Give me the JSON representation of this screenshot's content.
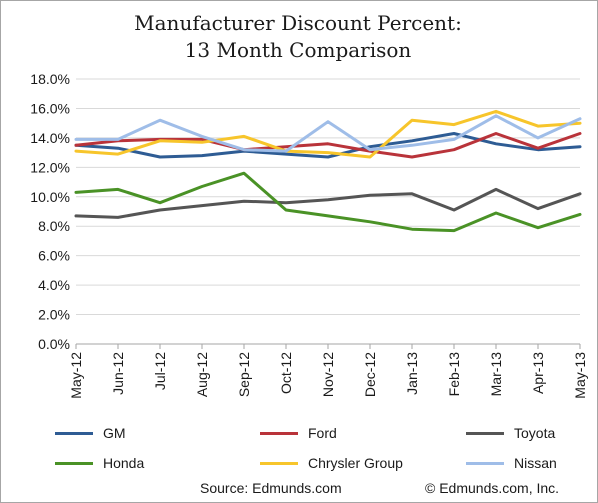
{
  "chart_data": {
    "type": "line",
    "title_lines": [
      "Manufacturer Discount Percent:",
      "13 Month Comparison"
    ],
    "categories": [
      "May-12",
      "Jun-12",
      "Jul-12",
      "Aug-12",
      "Sep-12",
      "Oct-12",
      "Nov-12",
      "Dec-12",
      "Jan-13",
      "Feb-13",
      "Mar-13",
      "Apr-13",
      "May-13"
    ],
    "ylim": [
      0,
      18
    ],
    "y_ticks": [
      "0.0%",
      "2.0%",
      "4.0%",
      "6.0%",
      "8.0%",
      "10.0%",
      "12.0%",
      "14.0%",
      "16.0%",
      "18.0%"
    ],
    "grid": true,
    "legend_position": "bottom",
    "series": [
      {
        "name": "GM",
        "color": "#2e5c94",
        "values": [
          13.5,
          13.3,
          12.7,
          12.8,
          13.1,
          12.9,
          12.7,
          13.4,
          13.8,
          14.3,
          13.6,
          13.2,
          13.4
        ]
      },
      {
        "name": "Ford",
        "color": "#b9333a",
        "values": [
          13.5,
          13.8,
          13.9,
          13.9,
          13.2,
          13.4,
          13.6,
          13.1,
          12.7,
          13.2,
          14.3,
          13.3,
          14.3
        ]
      },
      {
        "name": "Toyota",
        "color": "#555555",
        "values": [
          8.7,
          8.6,
          9.1,
          9.4,
          9.7,
          9.6,
          9.8,
          10.1,
          10.2,
          9.1,
          10.5,
          9.2,
          10.2
        ]
      },
      {
        "name": "Honda",
        "color": "#4a9226",
        "values": [
          10.3,
          10.5,
          9.6,
          10.7,
          11.6,
          9.1,
          8.7,
          8.3,
          7.8,
          7.7,
          8.9,
          7.9,
          8.8
        ]
      },
      {
        "name": "Chrysler Group",
        "color": "#f7c52b",
        "values": [
          13.1,
          12.9,
          13.8,
          13.7,
          14.1,
          13.1,
          13.0,
          12.7,
          15.2,
          14.9,
          15.8,
          14.8,
          15.0
        ]
      },
      {
        "name": "Nissan",
        "color": "#9fbde8",
        "values": [
          13.9,
          13.9,
          15.2,
          14.1,
          13.2,
          13.1,
          15.1,
          13.2,
          13.5,
          13.9,
          15.5,
          14.0,
          15.3
        ]
      }
    ]
  },
  "footer": {
    "source": "Source: Edmunds.com",
    "copyright": "© Edmunds.com, Inc."
  }
}
